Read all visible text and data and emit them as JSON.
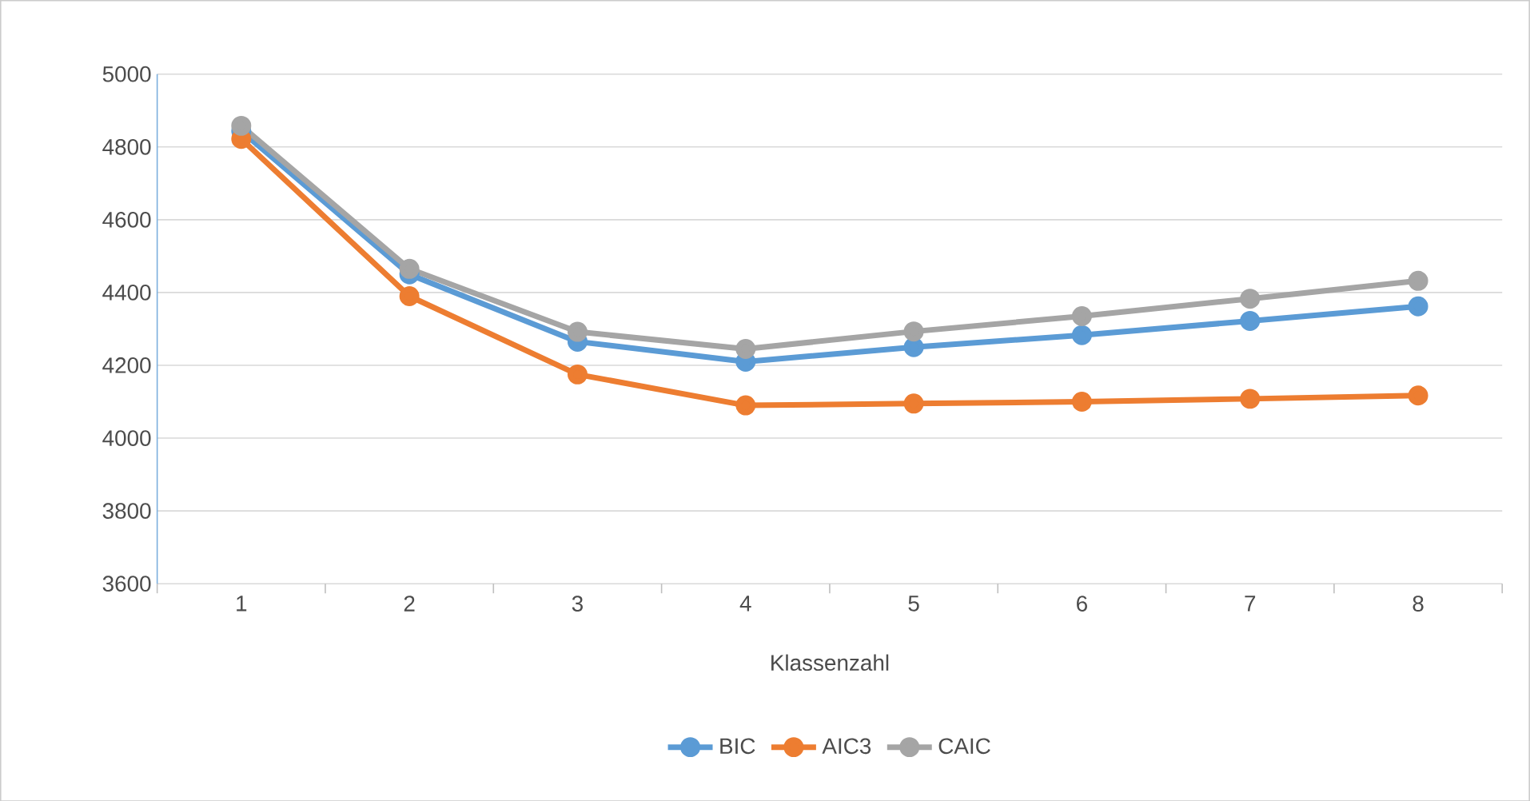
{
  "chart_data": {
    "type": "line",
    "xlabel": "Klassenzahl",
    "categories": [
      "1",
      "2",
      "3",
      "4",
      "5",
      "6",
      "7",
      "8"
    ],
    "series": [
      {
        "name": "BIC",
        "color": "#5b9bd5",
        "values": [
          4844,
          4450,
          4265,
          4210,
          4250,
          4283,
          4322,
          4362
        ]
      },
      {
        "name": "AIC3",
        "color": "#ed7d31",
        "values": [
          4822,
          4390,
          4175,
          4090,
          4095,
          4100,
          4108,
          4117
        ]
      },
      {
        "name": "CAIC",
        "color": "#a5a5a5",
        "values": [
          4858,
          4465,
          4292,
          4245,
          4293,
          4335,
          4383,
          4432
        ]
      }
    ],
    "ylim": [
      3600,
      5000
    ],
    "yticks": [
      3600,
      3800,
      4000,
      4200,
      4400,
      4600,
      4800,
      5000
    ],
    "grid": "y",
    "legend": "bottom",
    "marker": "circle",
    "line_style": "solid"
  }
}
